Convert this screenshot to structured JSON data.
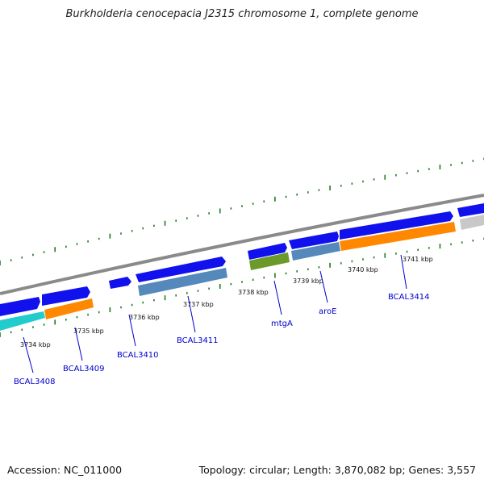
{
  "title": "Burkholderia cenocepacia J2315 chromosome 1, complete genome",
  "footer": {
    "accession": "Accession: NC_011000",
    "summary": "Topology: circular; Length: 3,870,082 bp; Genes: 3,557"
  },
  "kbp_labels": [
    "3734 kbp",
    "3735 kbp",
    "3736 kbp",
    "3737 kbp",
    "3738 kbp",
    "3739 kbp",
    "3740 kbp",
    "3741 kbp"
  ],
  "gene_labels": [
    "BCAL3408",
    "BCAL3409",
    "BCAL3410",
    "BCAL3411",
    "mtgA",
    "aroE",
    "BCAL3414"
  ],
  "colors": {
    "backbone": "#8a8a8a",
    "tick": "#1f7a1f",
    "forward_gene": "#1111ee",
    "cyan": "#22cccc",
    "orange": "#ff8800",
    "steel": "#5588bb",
    "olive": "#6b9a2a",
    "gray_gene": "#c8c8c8",
    "label": "#0000cc"
  }
}
